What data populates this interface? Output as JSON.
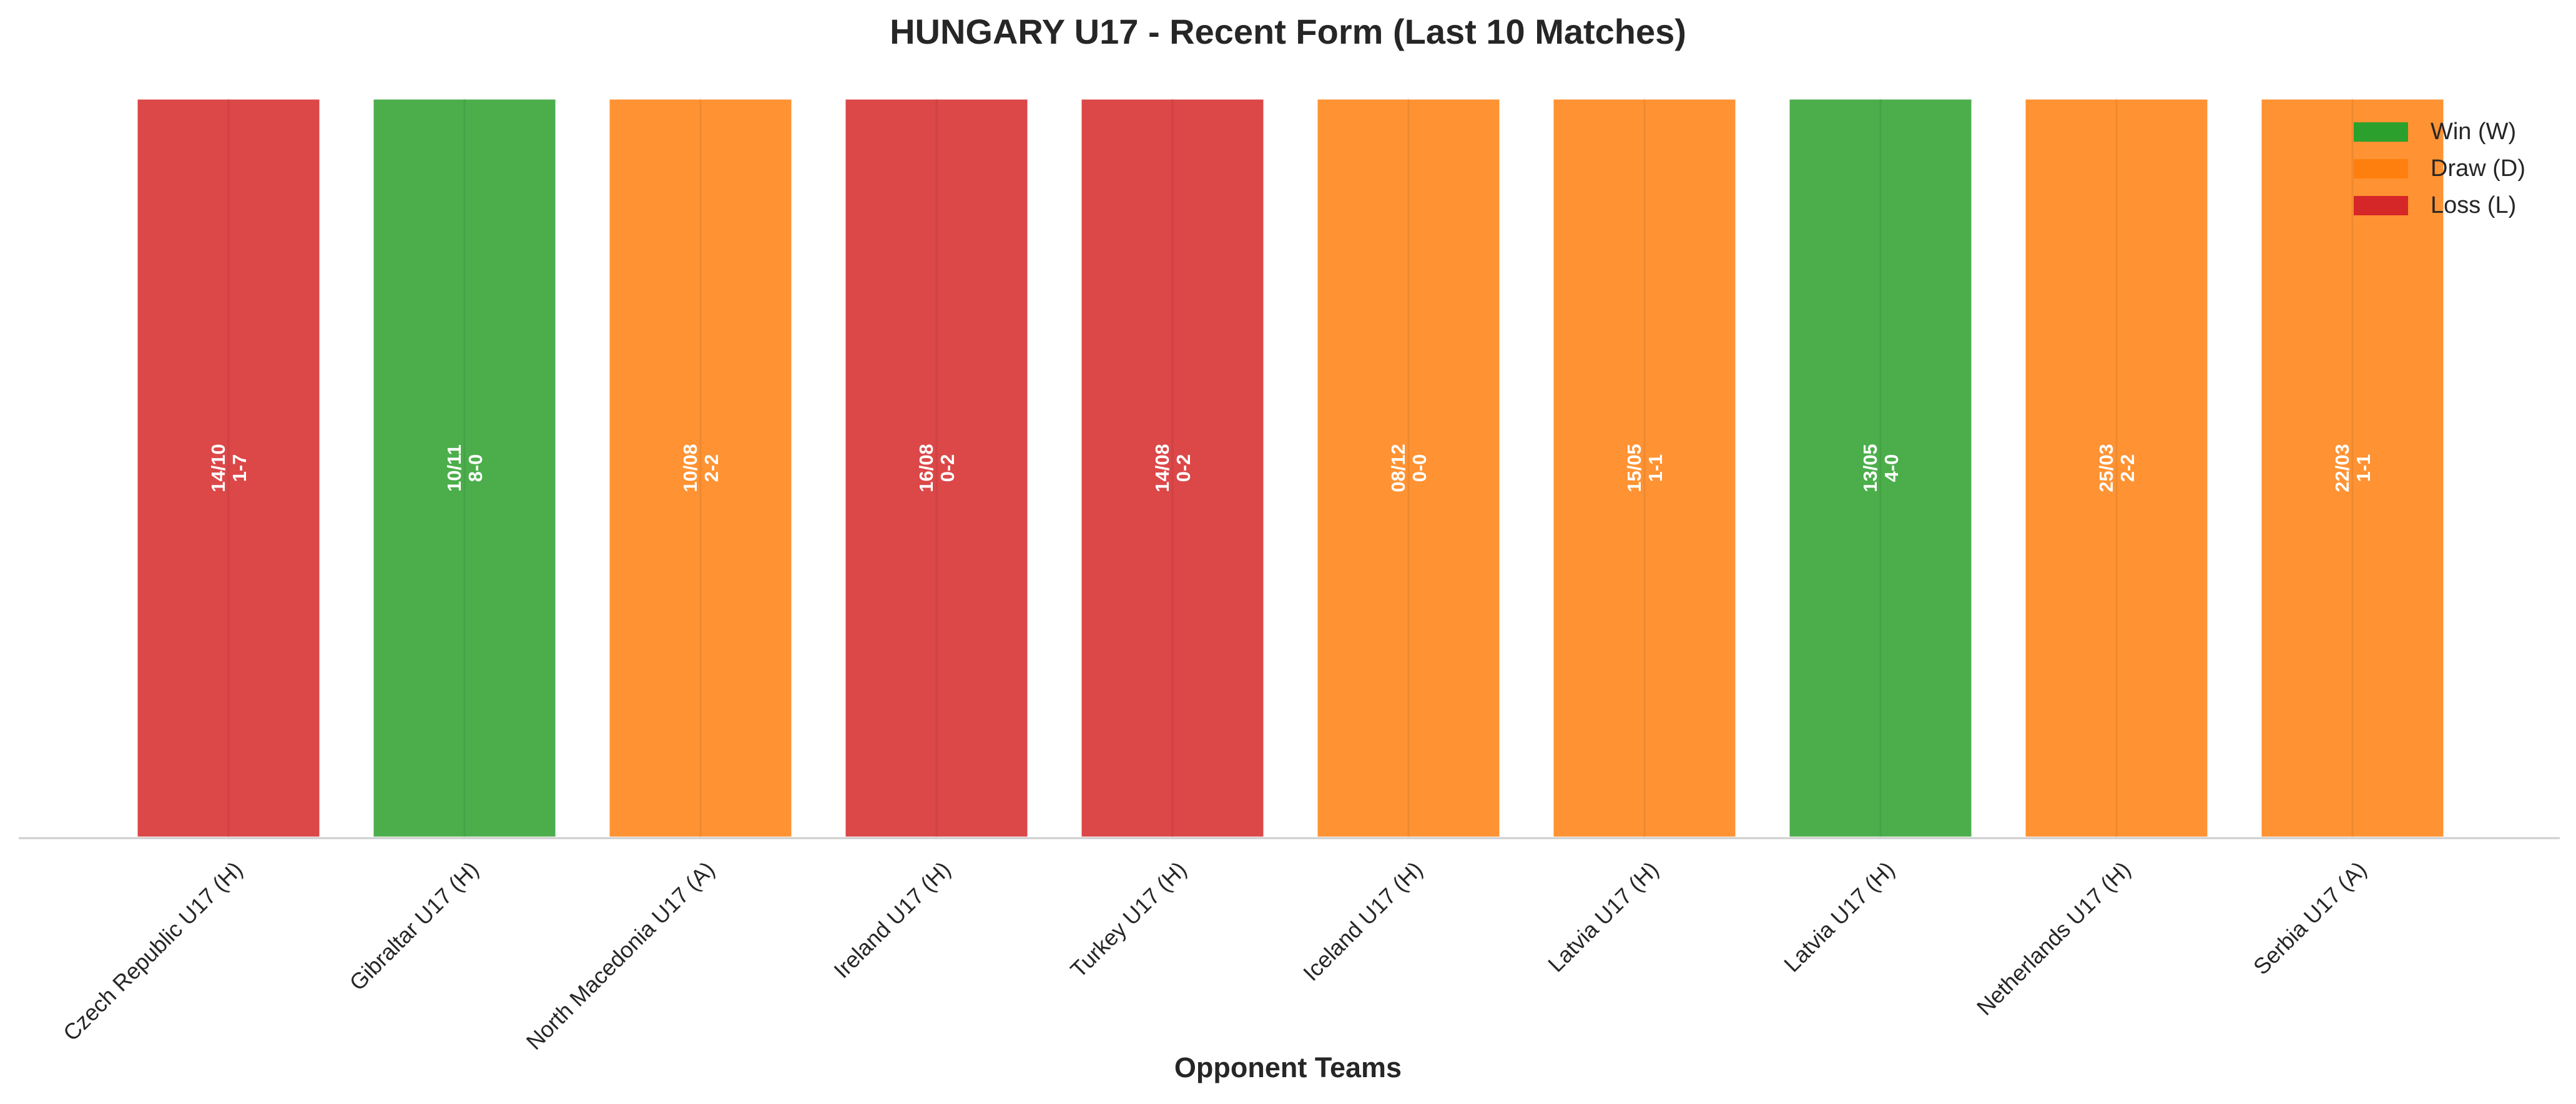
{
  "colors": {
    "W": "#2ca02c",
    "D": "#ff7f0e",
    "L": "#d62728"
  },
  "chart_data": {
    "type": "bar",
    "title": "HUNGARY U17 - Recent Form (Last 10 Matches)",
    "xlabel": "Opponent Teams",
    "ylabel": "",
    "grid": false,
    "legend_position": "top-right",
    "categories": [
      "Czech Republic U17 (H)",
      "Gibraltar U17 (H)",
      "North Macedonia U17 (A)",
      "Ireland U17 (H)",
      "Turkey U17 (H)",
      "Iceland U17 (H)",
      "Latvia U17 (H)",
      "Latvia U17 (H)",
      "Netherlands U17 (H)",
      "Serbia U17 (A)"
    ],
    "values": [
      1,
      1,
      1,
      1,
      1,
      1,
      1,
      1,
      1,
      1
    ],
    "results": [
      "L",
      "W",
      "D",
      "L",
      "L",
      "D",
      "D",
      "W",
      "D",
      "D"
    ],
    "dates": [
      "14/10",
      "10/11",
      "10/08",
      "16/08",
      "14/08",
      "08/12",
      "15/05",
      "13/05",
      "25/03",
      "22/03"
    ],
    "scores": [
      "1-7",
      "8-0",
      "2-2",
      "0-2",
      "0-2",
      "0-0",
      "1-1",
      "4-0",
      "2-2",
      "1-1"
    ],
    "ylim": [
      0,
      1
    ],
    "legend": [
      {
        "key": "W",
        "label": "Win (W)"
      },
      {
        "key": "D",
        "label": "Draw (D)"
      },
      {
        "key": "L",
        "label": "Loss (L)"
      }
    ]
  }
}
